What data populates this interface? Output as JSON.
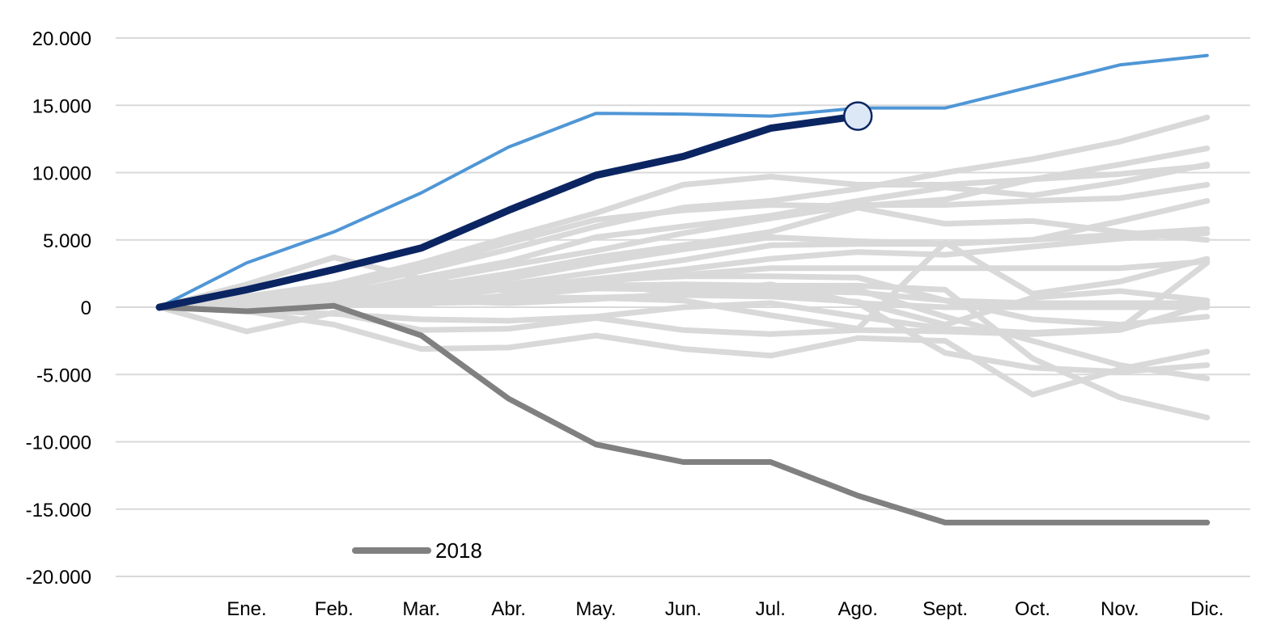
{
  "chart_data": {
    "type": "line",
    "title": "",
    "xlabel": "",
    "ylabel": "",
    "x": [
      "",
      "Ene.",
      "Feb.",
      "Mar.",
      "Abr.",
      "May.",
      "Jun.",
      "Jul.",
      "Ago.",
      "Sept.",
      "Oct.",
      "Nov.",
      "Dic."
    ],
    "ylim": [
      -20000,
      20000
    ],
    "yticks": [
      20000,
      15000,
      10000,
      5000,
      0,
      -5000,
      -10000,
      -15000,
      -20000
    ],
    "ytick_labels": [
      "20.000",
      "15.000",
      "10.000",
      "5.000",
      "0",
      "-5.000",
      "-10.000",
      "-15.000",
      "-20.000"
    ],
    "grid": true,
    "legend": {
      "position": "bottom-left",
      "entries": [
        {
          "label": "2018",
          "color": "#808080"
        }
      ]
    },
    "colors": {
      "highlight_year": "#0b2562",
      "max_year": "#4f96d6",
      "year_2018": "#808080",
      "other_years": "#d9d9d9",
      "marker_fill": "#dce8f5",
      "grid": "#d9d9d9"
    },
    "current_marker": {
      "x": "Ago.",
      "y": 14200
    },
    "series": [
      {
        "role": "highlight",
        "values": [
          0,
          1300,
          2800,
          4400,
          7200,
          9800,
          11200,
          13300,
          14200,
          null,
          null,
          null,
          null
        ]
      },
      {
        "role": "max",
        "values": [
          0,
          3300,
          5600,
          8500,
          11900,
          14400,
          14350,
          14200,
          14800,
          14800,
          16400,
          18000,
          18700
        ]
      },
      {
        "role": "2018",
        "name": "2018",
        "values": [
          0,
          -300,
          100,
          -2100,
          -6800,
          -10200,
          -11500,
          -11500,
          -14000,
          -16000,
          -16000,
          -16000,
          -16000
        ]
      },
      {
        "role": "other",
        "values": [
          0,
          800,
          1700,
          3300,
          5200,
          7000,
          9100,
          9700,
          9100,
          9100,
          9500,
          9900,
          10500
        ]
      },
      {
        "role": "other",
        "values": [
          0,
          500,
          1300,
          2700,
          4300,
          6000,
          7400,
          7900,
          8800,
          10000,
          11000,
          12300,
          14100
        ]
      },
      {
        "role": "other",
        "values": [
          0,
          600,
          1500,
          3000,
          4800,
          6500,
          7200,
          7600,
          7500,
          8000,
          9500,
          10600,
          11800
        ]
      },
      {
        "role": "other",
        "values": [
          0,
          400,
          900,
          2200,
          3400,
          5200,
          6000,
          6800,
          7900,
          8900,
          8300,
          9300,
          10600
        ]
      },
      {
        "role": "other",
        "values": [
          0,
          300,
          1100,
          1900,
          3100,
          4200,
          5500,
          6600,
          7600,
          7600,
          7900,
          8100,
          9100
        ]
      },
      {
        "role": "other",
        "values": [
          0,
          300,
          800,
          1500,
          2500,
          3700,
          4600,
          5600,
          7400,
          6200,
          6400,
          5600,
          5000
        ]
      },
      {
        "role": "other",
        "values": [
          0,
          200,
          700,
          1300,
          2100,
          3300,
          4300,
          5200,
          4900,
          4700,
          5000,
          5400,
          5800
        ]
      },
      {
        "role": "other",
        "values": [
          0,
          200,
          500,
          1000,
          1700,
          2600,
          3500,
          4600,
          4700,
          4700,
          5000,
          6400,
          7900
        ]
      },
      {
        "role": "other",
        "values": [
          0,
          100,
          400,
          900,
          1400,
          2100,
          2800,
          3600,
          4100,
          3900,
          4500,
          5100,
          5500
        ]
      },
      {
        "role": "other",
        "values": [
          0,
          500,
          1200,
          1700,
          1700,
          1900,
          2400,
          2900,
          2900,
          2900,
          2900,
          2900,
          3400
        ]
      },
      {
        "role": "other",
        "values": [
          0,
          1700,
          3700,
          2100,
          1200,
          1400,
          1500,
          1200,
          1100,
          500,
          300,
          300,
          300
        ]
      },
      {
        "role": "other",
        "values": [
          0,
          300,
          800,
          500,
          800,
          1400,
          1300,
          1100,
          1300,
          -700,
          -2500,
          -4300,
          -5300
        ]
      },
      {
        "role": "other",
        "values": [
          0,
          -200,
          -500,
          -900,
          -1000,
          -700,
          0,
          300,
          -700,
          -1600,
          -1900,
          -1600,
          3300
        ]
      },
      {
        "role": "other",
        "values": [
          0,
          -1800,
          -400,
          -1700,
          -1600,
          -800,
          -1700,
          -2000,
          -1700,
          -1800,
          -2000,
          -1700,
          200
        ]
      },
      {
        "role": "other",
        "values": [
          0,
          -300,
          -1300,
          -3100,
          -3000,
          -2100,
          -3100,
          -3600,
          -2300,
          -2500,
          -6500,
          -4600,
          -3300
        ]
      },
      {
        "role": "other",
        "values": [
          0,
          400,
          900,
          500,
          300,
          600,
          1000,
          1700,
          300,
          -3400,
          -4500,
          -4800,
          -4300
        ]
      },
      {
        "role": "other",
        "values": [
          0,
          200,
          300,
          200,
          900,
          1600,
          1700,
          1600,
          1600,
          1300,
          -3800,
          -6700,
          -8200
        ]
      },
      {
        "role": "other",
        "values": [
          0,
          100,
          300,
          300,
          400,
          700,
          900,
          1200,
          300,
          0,
          0,
          0,
          0
        ]
      },
      {
        "role": "other",
        "values": [
          0,
          0,
          200,
          600,
          700,
          700,
          500,
          -600,
          -1600,
          4800,
          1000,
          1900,
          3600
        ]
      },
      {
        "role": "other",
        "values": [
          0,
          300,
          700,
          1100,
          1600,
          2000,
          2300,
          2300,
          2200,
          500,
          -900,
          -1300,
          -700
        ]
      },
      {
        "role": "other",
        "values": [
          0,
          100,
          200,
          500,
          1400,
          1900,
          900,
          800,
          400,
          -1300,
          700,
          1200,
          500
        ]
      }
    ]
  }
}
